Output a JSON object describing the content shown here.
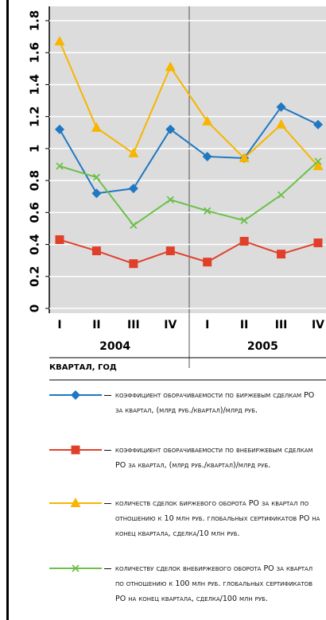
{
  "chart_data": {
    "type": "line",
    "x_label": "квартал, год",
    "categories": [
      "I",
      "II",
      "III",
      "IV",
      "I",
      "II",
      "III",
      "IV"
    ],
    "groups": [
      {
        "label": "2004",
        "span": [
          0,
          3
        ]
      },
      {
        "label": "2005",
        "span": [
          4,
          7
        ]
      }
    ],
    "ylim": [
      0,
      1.8
    ],
    "yticks": [
      0,
      0.2,
      0.4,
      0.6,
      0.8,
      1,
      1.2,
      1.4,
      1.6,
      1.8
    ],
    "grid": true,
    "series": [
      {
        "name": "коэффициент оборачиваемости по биржевым сделкам РО за квартал, (млрд руб./квартал)/млрд руб.",
        "color": "#1f78c1",
        "marker": "diamond",
        "values": [
          1.12,
          0.72,
          0.75,
          1.12,
          0.95,
          0.94,
          1.26,
          1.15
        ]
      },
      {
        "name": "коэффициент оборачиваемости по внебиржевым сделкам РО за квартал, (млрд руб./квартал)/млрд руб.",
        "color": "#e0402a",
        "marker": "square",
        "values": [
          0.43,
          0.36,
          0.28,
          0.36,
          0.29,
          0.42,
          0.34,
          0.41
        ]
      },
      {
        "name": "количеств сделок биржевого оборота РО за квартал по отношению к 10 млн руб. глобальных сертификатов РО на конец квартала, сделка/10 млн руб.",
        "color": "#f7b500",
        "marker": "triangle",
        "values": [
          1.67,
          1.13,
          0.97,
          1.51,
          1.17,
          0.94,
          1.15,
          0.89
        ]
      },
      {
        "name": "количеству сделок внебиржевого оборота РО за квартал по отношению к 100 млн руб. глобальных сертификатов РО на конец квартала, сделка/100 млн руб.",
        "color": "#6cc04a",
        "marker": "x",
        "values": [
          0.89,
          0.82,
          0.52,
          0.68,
          0.61,
          0.55,
          0.71,
          0.92
        ]
      }
    ]
  }
}
